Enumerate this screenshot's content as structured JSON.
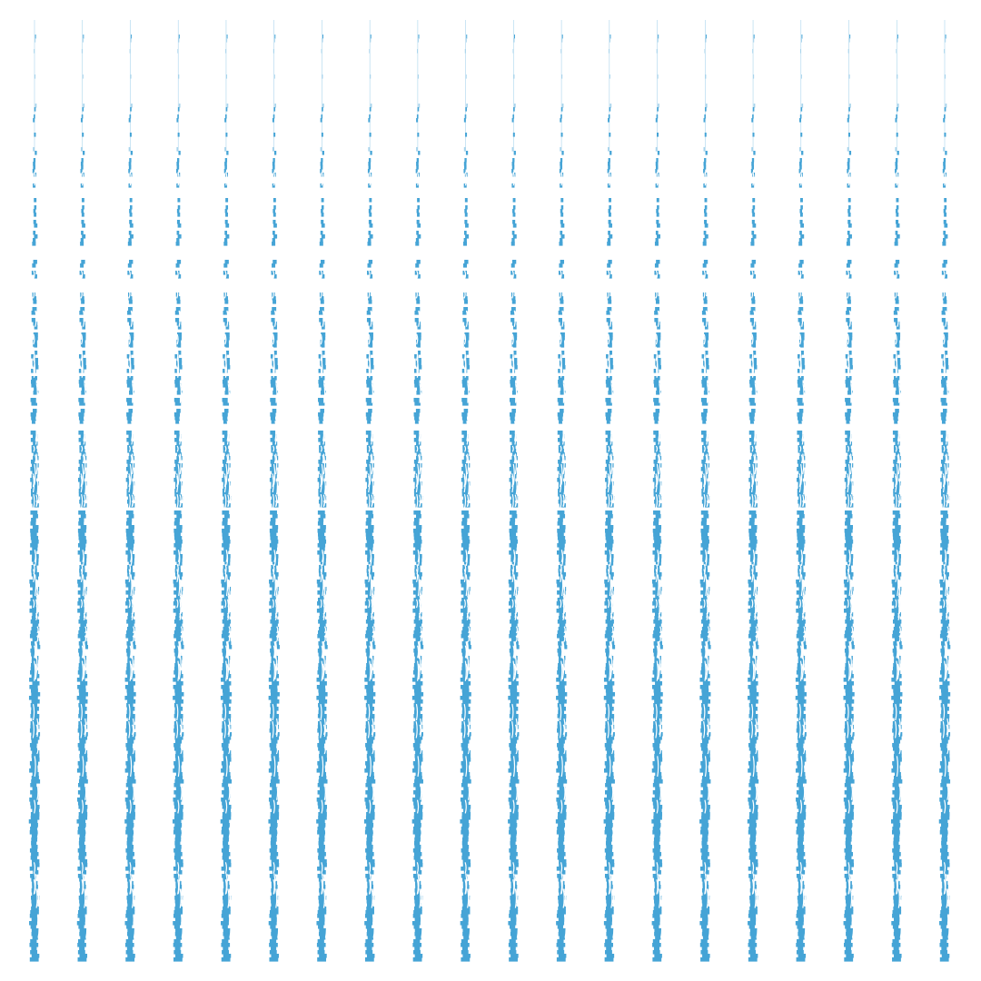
{
  "pattern": {
    "description_free": true,
    "column_count": 20,
    "colors": {
      "background": "#ffffff",
      "stroke": "#45a4d6",
      "stroke_light": "#a9d4ec"
    },
    "icon": "brushed-vertical-stripe-pattern"
  }
}
